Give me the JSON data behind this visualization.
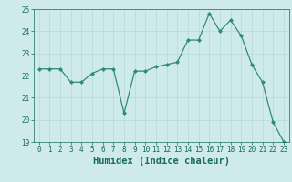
{
  "x": [
    0,
    1,
    2,
    3,
    4,
    5,
    6,
    7,
    8,
    9,
    10,
    11,
    12,
    13,
    14,
    15,
    16,
    17,
    18,
    19,
    20,
    21,
    22,
    23
  ],
  "y": [
    22.3,
    22.3,
    22.3,
    21.7,
    21.7,
    22.1,
    22.3,
    22.3,
    20.3,
    22.2,
    22.2,
    22.4,
    22.5,
    22.6,
    23.6,
    23.6,
    24.8,
    24.0,
    24.5,
    23.8,
    22.5,
    21.7,
    19.9,
    19.0
  ],
  "line_color": "#2e8b7a",
  "marker": "D",
  "marker_size": 2,
  "bg_color": "#ceeaea",
  "grid_color": "#b8d8d8",
  "xlabel": "Humidex (Indice chaleur)",
  "ylim": [
    19,
    25
  ],
  "xlim": [
    -0.5,
    23.5
  ],
  "yticks": [
    19,
    20,
    21,
    22,
    23,
    24,
    25
  ],
  "xticks": [
    0,
    1,
    2,
    3,
    4,
    5,
    6,
    7,
    8,
    9,
    10,
    11,
    12,
    13,
    14,
    15,
    16,
    17,
    18,
    19,
    20,
    21,
    22,
    23
  ],
  "tick_color": "#1a6b5a",
  "tick_fontsize": 5.5,
  "xlabel_fontsize": 7.5,
  "label_color": "#1a6b5a",
  "spine_color": "#1a6b5a"
}
